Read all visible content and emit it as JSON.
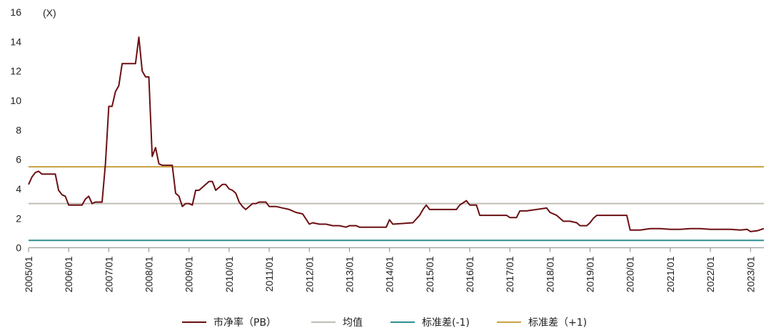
{
  "chart_data": {
    "type": "line",
    "unit_label": "(X)",
    "ylim": [
      0,
      16
    ],
    "y_ticks": [
      0,
      2,
      4,
      6,
      8,
      10,
      12,
      14,
      16
    ],
    "x_tick_labels": [
      "2005/01",
      "2006/01",
      "2007/01",
      "2008/01",
      "2009/01",
      "2010/01",
      "2011/01",
      "2012/01",
      "2013/01",
      "2014/01",
      "2015/01",
      "2016/01",
      "2017/01",
      "2018/01",
      "2019/01",
      "2020/01",
      "2021/01",
      "2022/01",
      "2023/01"
    ],
    "grid": false,
    "legend_position": "bottom",
    "series": [
      {
        "name": "市净率（PB）",
        "color": "#6b0f12",
        "points": [
          [
            "2005/01",
            4.3
          ],
          [
            "2005/02",
            4.8
          ],
          [
            "2005/03",
            5.1
          ],
          [
            "2005/04",
            5.2
          ],
          [
            "2005/05",
            5.0
          ],
          [
            "2005/06",
            5.0
          ],
          [
            "2005/07",
            5.0
          ],
          [
            "2005/08",
            5.0
          ],
          [
            "2005/09",
            5.0
          ],
          [
            "2005/10",
            3.9
          ],
          [
            "2005/11",
            3.6
          ],
          [
            "2005/12",
            3.5
          ],
          [
            "2006/01",
            2.9
          ],
          [
            "2006/03",
            2.9
          ],
          [
            "2006/05",
            2.9
          ],
          [
            "2006/06",
            3.3
          ],
          [
            "2006/07",
            3.5
          ],
          [
            "2006/08",
            3.0
          ],
          [
            "2006/09",
            3.1
          ],
          [
            "2006/11",
            3.1
          ],
          [
            "2006/12",
            5.7
          ],
          [
            "2007/01",
            9.6
          ],
          [
            "2007/02",
            9.6
          ],
          [
            "2007/03",
            10.6
          ],
          [
            "2007/04",
            11.0
          ],
          [
            "2007/05",
            12.5
          ],
          [
            "2007/06",
            12.5
          ],
          [
            "2007/07",
            12.5
          ],
          [
            "2007/08",
            12.5
          ],
          [
            "2007/09",
            12.5
          ],
          [
            "2007/10",
            14.3
          ],
          [
            "2007/11",
            12.0
          ],
          [
            "2007/12",
            11.6
          ],
          [
            "2008/01",
            11.6
          ],
          [
            "2008/02",
            6.2
          ],
          [
            "2008/03",
            6.8
          ],
          [
            "2008/04",
            5.7
          ],
          [
            "2008/05",
            5.6
          ],
          [
            "2008/06",
            5.6
          ],
          [
            "2008/07",
            5.6
          ],
          [
            "2008/08",
            5.6
          ],
          [
            "2008/09",
            3.7
          ],
          [
            "2008/10",
            3.5
          ],
          [
            "2008/11",
            2.8
          ],
          [
            "2008/12",
            3.0
          ],
          [
            "2009/01",
            3.0
          ],
          [
            "2009/02",
            2.9
          ],
          [
            "2009/03",
            3.9
          ],
          [
            "2009/04",
            3.9
          ],
          [
            "2009/05",
            4.1
          ],
          [
            "2009/06",
            4.3
          ],
          [
            "2009/07",
            4.5
          ],
          [
            "2009/08",
            4.5
          ],
          [
            "2009/09",
            3.9
          ],
          [
            "2009/10",
            4.1
          ],
          [
            "2009/11",
            4.3
          ],
          [
            "2009/12",
            4.3
          ],
          [
            "2010/01",
            4.0
          ],
          [
            "2010/02",
            3.9
          ],
          [
            "2010/03",
            3.7
          ],
          [
            "2010/04",
            3.1
          ],
          [
            "2010/05",
            2.8
          ],
          [
            "2010/06",
            2.6
          ],
          [
            "2010/07",
            2.8
          ],
          [
            "2010/08",
            3.0
          ],
          [
            "2010/09",
            3.0
          ],
          [
            "2010/10",
            3.1
          ],
          [
            "2010/11",
            3.1
          ],
          [
            "2010/12",
            3.1
          ],
          [
            "2011/01",
            2.8
          ],
          [
            "2011/03",
            2.8
          ],
          [
            "2011/05",
            2.7
          ],
          [
            "2011/07",
            2.6
          ],
          [
            "2011/09",
            2.4
          ],
          [
            "2011/11",
            2.3
          ],
          [
            "2012/01",
            1.6
          ],
          [
            "2012/02",
            1.7
          ],
          [
            "2012/04",
            1.6
          ],
          [
            "2012/06",
            1.6
          ],
          [
            "2012/08",
            1.5
          ],
          [
            "2012/10",
            1.5
          ],
          [
            "2012/12",
            1.4
          ],
          [
            "2013/01",
            1.5
          ],
          [
            "2013/03",
            1.5
          ],
          [
            "2013/04",
            1.4
          ],
          [
            "2013/06",
            1.4
          ],
          [
            "2013/09",
            1.4
          ],
          [
            "2013/12",
            1.4
          ],
          [
            "2014/01",
            1.9
          ],
          [
            "2014/02",
            1.6
          ],
          [
            "2014/05",
            1.65
          ],
          [
            "2014/08",
            1.7
          ],
          [
            "2014/10",
            2.2
          ],
          [
            "2014/11",
            2.6
          ],
          [
            "2014/12",
            2.9
          ],
          [
            "2015/01",
            2.6
          ],
          [
            "2015/03",
            2.6
          ],
          [
            "2015/06",
            2.6
          ],
          [
            "2015/09",
            2.6
          ],
          [
            "2015/10",
            2.9
          ],
          [
            "2015/12",
            3.2
          ],
          [
            "2016/01",
            2.9
          ],
          [
            "2016/03",
            2.9
          ],
          [
            "2016/04",
            2.2
          ],
          [
            "2016/06",
            2.2
          ],
          [
            "2016/09",
            2.2
          ],
          [
            "2016/12",
            2.2
          ],
          [
            "2017/01",
            2.05
          ],
          [
            "2017/03",
            2.05
          ],
          [
            "2017/04",
            2.5
          ],
          [
            "2017/06",
            2.5
          ],
          [
            "2017/09",
            2.6
          ],
          [
            "2017/12",
            2.7
          ],
          [
            "2018/01",
            2.4
          ],
          [
            "2018/03",
            2.2
          ],
          [
            "2018/05",
            1.8
          ],
          [
            "2018/07",
            1.8
          ],
          [
            "2018/09",
            1.7
          ],
          [
            "2018/10",
            1.5
          ],
          [
            "2018/12",
            1.5
          ],
          [
            "2019/01",
            1.7
          ],
          [
            "2019/02",
            2.0
          ],
          [
            "2019/03",
            2.2
          ],
          [
            "2019/06",
            2.2
          ],
          [
            "2019/09",
            2.2
          ],
          [
            "2019/12",
            2.2
          ],
          [
            "2020/01",
            1.2
          ],
          [
            "2020/04",
            1.2
          ],
          [
            "2020/07",
            1.3
          ],
          [
            "2020/10",
            1.3
          ],
          [
            "2021/01",
            1.25
          ],
          [
            "2021/04",
            1.25
          ],
          [
            "2021/07",
            1.3
          ],
          [
            "2021/10",
            1.3
          ],
          [
            "2022/01",
            1.25
          ],
          [
            "2022/04",
            1.25
          ],
          [
            "2022/07",
            1.25
          ],
          [
            "2022/10",
            1.2
          ],
          [
            "2022/12",
            1.25
          ],
          [
            "2023/01",
            1.1
          ],
          [
            "2023/03",
            1.15
          ],
          [
            "2023/05",
            1.3
          ]
        ]
      },
      {
        "name": "均值",
        "color": "#c0bdb5",
        "value": 3.0
      },
      {
        "name": "标准差(-1)",
        "color": "#2f8f8f",
        "value": 0.5
      },
      {
        "name": "标准差（+1)",
        "color": "#c9a444",
        "value": 5.5
      }
    ]
  }
}
